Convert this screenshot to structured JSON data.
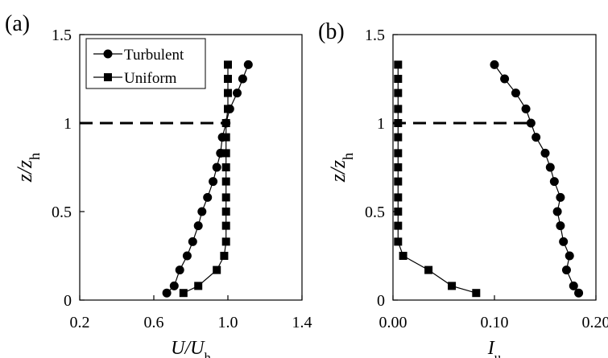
{
  "figure": {
    "panel_a_label": "(a)",
    "panel_b_label": "(b)"
  },
  "chart_data": [
    {
      "type": "line",
      "panel": "(a)",
      "xlabel": "U/U_h",
      "ylabel": "z/z_h",
      "xlim": [
        0.2,
        1.4
      ],
      "ylim": [
        0,
        1.5
      ],
      "xticks": [
        "0.2",
        "0.6",
        "1.0",
        "1.4"
      ],
      "yticks": [
        "0",
        "0.5",
        "1",
        "1.5"
      ],
      "grid": false,
      "legend": "top-left",
      "reference_line": {
        "style": "dashed",
        "y": 1.0,
        "x_range": [
          0.2,
          1.0
        ]
      },
      "series": [
        {
          "name": "Turbulent",
          "marker": "circle",
          "points": [
            [
              0.67,
              0.04
            ],
            [
              0.71,
              0.08
            ],
            [
              0.74,
              0.17
            ],
            [
              0.78,
              0.25
            ],
            [
              0.81,
              0.33
            ],
            [
              0.84,
              0.42
            ],
            [
              0.86,
              0.5
            ],
            [
              0.89,
              0.58
            ],
            [
              0.92,
              0.67
            ],
            [
              0.94,
              0.75
            ],
            [
              0.96,
              0.83
            ],
            [
              0.97,
              0.92
            ],
            [
              0.99,
              1.0
            ],
            [
              1.01,
              1.08
            ],
            [
              1.05,
              1.17
            ],
            [
              1.08,
              1.25
            ],
            [
              1.11,
              1.33
            ]
          ]
        },
        {
          "name": "Uniform",
          "marker": "square",
          "points": [
            [
              0.76,
              0.04
            ],
            [
              0.84,
              0.08
            ],
            [
              0.94,
              0.17
            ],
            [
              0.98,
              0.25
            ],
            [
              0.99,
              0.33
            ],
            [
              0.99,
              0.42
            ],
            [
              0.99,
              0.5
            ],
            [
              0.99,
              0.58
            ],
            [
              0.99,
              0.67
            ],
            [
              0.99,
              0.75
            ],
            [
              0.99,
              0.83
            ],
            [
              0.99,
              0.92
            ],
            [
              0.99,
              1.0
            ],
            [
              1.0,
              1.08
            ],
            [
              1.0,
              1.17
            ],
            [
              1.0,
              1.25
            ],
            [
              1.0,
              1.33
            ]
          ]
        }
      ]
    },
    {
      "type": "line",
      "panel": "(b)",
      "xlabel": "I_u",
      "ylabel": "z/z_h",
      "xlim": [
        0.0,
        0.2
      ],
      "ylim": [
        0,
        1.5
      ],
      "xticks": [
        "0.00",
        "0.10",
        "0.20"
      ],
      "yticks": [
        "0",
        "0.5",
        "1",
        "1.5"
      ],
      "grid": false,
      "reference_line": {
        "style": "dashed",
        "y": 1.0,
        "x_range": [
          0.0,
          0.133
        ]
      },
      "series": [
        {
          "name": "Turbulent",
          "marker": "circle",
          "points": [
            [
              0.183,
              0.04
            ],
            [
              0.178,
              0.08
            ],
            [
              0.171,
              0.17
            ],
            [
              0.174,
              0.25
            ],
            [
              0.168,
              0.33
            ],
            [
              0.165,
              0.42
            ],
            [
              0.162,
              0.5
            ],
            [
              0.165,
              0.58
            ],
            [
              0.159,
              0.67
            ],
            [
              0.155,
              0.75
            ],
            [
              0.15,
              0.83
            ],
            [
              0.141,
              0.92
            ],
            [
              0.136,
              1.0
            ],
            [
              0.131,
              1.08
            ],
            [
              0.121,
              1.17
            ],
            [
              0.11,
              1.25
            ],
            [
              0.1,
              1.33
            ]
          ]
        },
        {
          "name": "Uniform",
          "marker": "square",
          "points": [
            [
              0.082,
              0.04
            ],
            [
              0.058,
              0.08
            ],
            [
              0.035,
              0.17
            ],
            [
              0.01,
              0.25
            ],
            [
              0.005,
              0.33
            ],
            [
              0.005,
              0.42
            ],
            [
              0.005,
              0.5
            ],
            [
              0.005,
              0.58
            ],
            [
              0.005,
              0.67
            ],
            [
              0.005,
              0.75
            ],
            [
              0.005,
              0.83
            ],
            [
              0.005,
              0.92
            ],
            [
              0.005,
              1.0
            ],
            [
              0.005,
              1.08
            ],
            [
              0.005,
              1.17
            ],
            [
              0.005,
              1.25
            ],
            [
              0.005,
              1.33
            ]
          ]
        }
      ]
    }
  ]
}
